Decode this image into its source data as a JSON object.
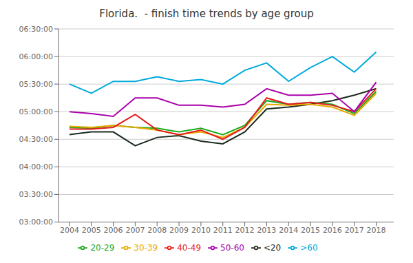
{
  "chart_data": {
    "type": "line",
    "title": "Florida.  - finish time trends by age group",
    "x": [
      2004,
      2005,
      2006,
      2007,
      2008,
      2009,
      2010,
      2011,
      2012,
      2013,
      2014,
      2015,
      2016,
      2017,
      2018
    ],
    "series": [
      {
        "name": "<20",
        "color": "#1c2b1e",
        "values": [
          275,
          278,
          278,
          263,
          272,
          274,
          268,
          265,
          278,
          303,
          305,
          308,
          312,
          318,
          325
        ]
      },
      {
        "name": "20-29",
        "color": "#1aaa1a",
        "values": [
          283,
          282,
          285,
          283,
          282,
          278,
          282,
          275,
          285,
          312,
          308,
          310,
          308,
          298,
          322
        ]
      },
      {
        "name": "30-39",
        "color": "#e6a800",
        "values": [
          284,
          283,
          285,
          283,
          280,
          275,
          278,
          272,
          283,
          308,
          307,
          308,
          305,
          296,
          320
        ]
      },
      {
        "name": "40-49",
        "color": "#e61a1a",
        "values": [
          281,
          281,
          283,
          297,
          280,
          275,
          280,
          270,
          283,
          315,
          308,
          310,
          307,
          300,
          325
        ]
      },
      {
        "name": "50-60",
        "color": "#aa00aa",
        "values": [
          300,
          298,
          295,
          315,
          315,
          307,
          307,
          305,
          308,
          325,
          318,
          318,
          320,
          300,
          332
        ]
      },
      {
        "name": ">60",
        "color": "#00aadd",
        "values": [
          330,
          320,
          333,
          333,
          338,
          333,
          335,
          330,
          345,
          353,
          333,
          348,
          360,
          343,
          365
        ]
      }
    ],
    "xlim": [
      2003.5,
      2018.8
    ],
    "xticks": [
      2004,
      2005,
      2006,
      2007,
      2008,
      2009,
      2010,
      2011,
      2012,
      2013,
      2014,
      2015,
      2016,
      2017,
      2018
    ],
    "ylim": [
      180,
      390
    ],
    "yticks": [
      {
        "value": 180,
        "label": "03:00:00"
      },
      {
        "value": 210,
        "label": "03:30:00"
      },
      {
        "value": 240,
        "label": "04:00:00"
      },
      {
        "value": 270,
        "label": "04:30:00"
      },
      {
        "value": 300,
        "label": "05:00:00"
      },
      {
        "value": 330,
        "label": "05:30:00"
      },
      {
        "value": 360,
        "label": "06:00:00"
      },
      {
        "value": 390,
        "label": "06:30:00"
      }
    ],
    "grid": true,
    "legend": "bottom"
  }
}
